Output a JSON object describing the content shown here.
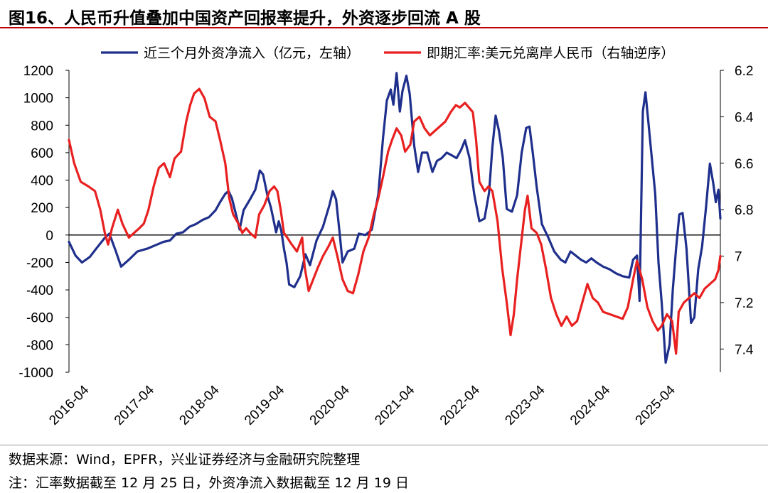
{
  "title": "图16、人民币升值叠加中国资产回报率提升，外资逐步回流 A 股",
  "source": "数据来源：Wind，EPFR，兴业证券经济与金融研究院整理",
  "note": "注：汇率数据截至 12 月 25 日，外资净流入数据截至 12 月 19 日",
  "chart_data": {
    "type": "line",
    "legend_position": "top",
    "x_tick_labels": [
      "2016-04",
      "2017-04",
      "2018-04",
      "2019-04",
      "2020-04",
      "2021-04",
      "2022-04",
      "2023-04",
      "2024-04",
      "2025-04"
    ],
    "x_range": [
      2016.0,
      2026.0
    ],
    "y_left": {
      "ticks": [
        1200,
        1000,
        800,
        600,
        400,
        200,
        0,
        -200,
        -400,
        -600,
        -800,
        -1000
      ],
      "range": [
        -1000,
        1200
      ]
    },
    "y_right": {
      "ticks": [
        6.2,
        6.4,
        6.6,
        6.8,
        7,
        7.2,
        7.4
      ],
      "range": [
        6.2,
        7.5
      ],
      "inverted": true
    },
    "series": [
      {
        "name": "近三个月外资净流入（亿元，左轴）",
        "color": "#1f2f8c",
        "axis": "left",
        "points": [
          [
            2016.0,
            -50
          ],
          [
            2016.1,
            -150
          ],
          [
            2016.2,
            -200
          ],
          [
            2016.32,
            -160
          ],
          [
            2016.45,
            -80
          ],
          [
            2016.55,
            -20
          ],
          [
            2016.62,
            10
          ],
          [
            2016.72,
            -120
          ],
          [
            2016.8,
            -230
          ],
          [
            2016.92,
            -180
          ],
          [
            2017.05,
            -120
          ],
          [
            2017.2,
            -100
          ],
          [
            2017.35,
            -70
          ],
          [
            2017.45,
            -50
          ],
          [
            2017.55,
            -40
          ],
          [
            2017.65,
            10
          ],
          [
            2017.75,
            20
          ],
          [
            2017.85,
            60
          ],
          [
            2017.95,
            80
          ],
          [
            2018.05,
            110
          ],
          [
            2018.15,
            130
          ],
          [
            2018.25,
            180
          ],
          [
            2018.32,
            240
          ],
          [
            2018.4,
            300
          ],
          [
            2018.45,
            320
          ],
          [
            2018.5,
            270
          ],
          [
            2018.58,
            120
          ],
          [
            2018.62,
            40
          ],
          [
            2018.68,
            180
          ],
          [
            2018.78,
            260
          ],
          [
            2018.86,
            330
          ],
          [
            2018.93,
            470
          ],
          [
            2018.98,
            440
          ],
          [
            2019.05,
            280
          ],
          [
            2019.1,
            200
          ],
          [
            2019.18,
            20
          ],
          [
            2019.22,
            100
          ],
          [
            2019.26,
            30
          ],
          [
            2019.3,
            -100
          ],
          [
            2019.34,
            -200
          ],
          [
            2019.38,
            -360
          ],
          [
            2019.46,
            -380
          ],
          [
            2019.55,
            -300
          ],
          [
            2019.63,
            -140
          ],
          [
            2019.7,
            -220
          ],
          [
            2019.8,
            -40
          ],
          [
            2019.9,
            60
          ],
          [
            2020.0,
            220
          ],
          [
            2020.05,
            320
          ],
          [
            2020.1,
            260
          ],
          [
            2020.15,
            40
          ],
          [
            2020.2,
            -200
          ],
          [
            2020.28,
            -120
          ],
          [
            2020.38,
            -100
          ],
          [
            2020.45,
            10
          ],
          [
            2020.55,
            0
          ],
          [
            2020.65,
            40
          ],
          [
            2020.75,
            300
          ],
          [
            2020.82,
            700
          ],
          [
            2020.88,
            980
          ],
          [
            2020.94,
            1060
          ],
          [
            2020.98,
            950
          ],
          [
            2021.03,
            1180
          ],
          [
            2021.08,
            900
          ],
          [
            2021.12,
            1050
          ],
          [
            2021.18,
            1160
          ],
          [
            2021.23,
            1030
          ],
          [
            2021.3,
            650
          ],
          [
            2021.36,
            460
          ],
          [
            2021.42,
            600
          ],
          [
            2021.5,
            600
          ],
          [
            2021.58,
            460
          ],
          [
            2021.65,
            540
          ],
          [
            2021.72,
            560
          ],
          [
            2021.8,
            600
          ],
          [
            2021.88,
            580
          ],
          [
            2021.95,
            560
          ],
          [
            2022.02,
            620
          ],
          [
            2022.08,
            690
          ],
          [
            2022.15,
            560
          ],
          [
            2022.22,
            300
          ],
          [
            2022.3,
            100
          ],
          [
            2022.38,
            120
          ],
          [
            2022.45,
            310
          ],
          [
            2022.5,
            640
          ],
          [
            2022.55,
            870
          ],
          [
            2022.6,
            760
          ],
          [
            2022.66,
            560
          ],
          [
            2022.72,
            190
          ],
          [
            2022.8,
            170
          ],
          [
            2022.88,
            290
          ],
          [
            2022.95,
            600
          ],
          [
            2023.02,
            780
          ],
          [
            2023.07,
            790
          ],
          [
            2023.12,
            600
          ],
          [
            2023.18,
            350
          ],
          [
            2023.26,
            80
          ],
          [
            2023.36,
            -20
          ],
          [
            2023.45,
            -120
          ],
          [
            2023.55,
            -180
          ],
          [
            2023.62,
            -200
          ],
          [
            2023.7,
            -120
          ],
          [
            2023.78,
            -150
          ],
          [
            2023.86,
            -180
          ],
          [
            2023.94,
            -200
          ],
          [
            2024.02,
            -170
          ],
          [
            2024.1,
            -200
          ],
          [
            2024.2,
            -230
          ],
          [
            2024.3,
            -250
          ],
          [
            2024.4,
            -280
          ],
          [
            2024.5,
            -300
          ],
          [
            2024.6,
            -310
          ],
          [
            2024.66,
            -180
          ],
          [
            2024.72,
            -150
          ],
          [
            2024.76,
            -480
          ],
          [
            2024.81,
            900
          ],
          [
            2024.85,
            1040
          ],
          [
            2024.9,
            800
          ],
          [
            2024.95,
            550
          ],
          [
            2025.0,
            300
          ],
          [
            2025.05,
            -200
          ],
          [
            2025.1,
            -500
          ],
          [
            2025.16,
            -930
          ],
          [
            2025.22,
            -800
          ],
          [
            2025.27,
            -400
          ],
          [
            2025.32,
            -100
          ],
          [
            2025.37,
            150
          ],
          [
            2025.42,
            160
          ],
          [
            2025.48,
            -100
          ],
          [
            2025.55,
            -640
          ],
          [
            2025.6,
            -600
          ],
          [
            2025.66,
            -250
          ],
          [
            2025.72,
            -80
          ],
          [
            2025.78,
            200
          ],
          [
            2025.84,
            520
          ],
          [
            2025.89,
            380
          ],
          [
            2025.93,
            240
          ],
          [
            2025.97,
            330
          ],
          [
            2026.0,
            120
          ]
        ]
      },
      {
        "name": "即期汇率:美元兑离岸人民币（右轴逆序）",
        "color": "#e82020",
        "axis": "right",
        "points": [
          [
            2016.0,
            6.5
          ],
          [
            2016.08,
            6.6
          ],
          [
            2016.18,
            6.68
          ],
          [
            2016.3,
            6.7
          ],
          [
            2016.4,
            6.72
          ],
          [
            2016.48,
            6.8
          ],
          [
            2016.55,
            6.9
          ],
          [
            2016.6,
            6.95
          ],
          [
            2016.66,
            6.88
          ],
          [
            2016.75,
            6.8
          ],
          [
            2016.82,
            6.86
          ],
          [
            2016.92,
            6.92
          ],
          [
            2017.0,
            6.9
          ],
          [
            2017.08,
            6.88
          ],
          [
            2017.15,
            6.86
          ],
          [
            2017.22,
            6.8
          ],
          [
            2017.3,
            6.7
          ],
          [
            2017.38,
            6.62
          ],
          [
            2017.46,
            6.6
          ],
          [
            2017.55,
            6.66
          ],
          [
            2017.62,
            6.58
          ],
          [
            2017.72,
            6.55
          ],
          [
            2017.8,
            6.42
          ],
          [
            2017.86,
            6.35
          ],
          [
            2017.92,
            6.3
          ],
          [
            2018.0,
            6.28
          ],
          [
            2018.08,
            6.32
          ],
          [
            2018.16,
            6.4
          ],
          [
            2018.25,
            6.42
          ],
          [
            2018.32,
            6.5
          ],
          [
            2018.4,
            6.6
          ],
          [
            2018.46,
            6.75
          ],
          [
            2018.52,
            6.82
          ],
          [
            2018.6,
            6.86
          ],
          [
            2018.66,
            6.9
          ],
          [
            2018.72,
            6.88
          ],
          [
            2018.78,
            6.9
          ],
          [
            2018.86,
            6.92
          ],
          [
            2018.92,
            6.82
          ],
          [
            2019.0,
            6.78
          ],
          [
            2019.08,
            6.72
          ],
          [
            2019.15,
            6.7
          ],
          [
            2019.2,
            6.72
          ],
          [
            2019.25,
            6.8
          ],
          [
            2019.3,
            6.9
          ],
          [
            2019.35,
            6.92
          ],
          [
            2019.42,
            6.95
          ],
          [
            2019.5,
            6.98
          ],
          [
            2019.58,
            6.92
          ],
          [
            2019.62,
            7.05
          ],
          [
            2019.68,
            7.15
          ],
          [
            2019.75,
            7.1
          ],
          [
            2019.82,
            7.05
          ],
          [
            2019.9,
            7.0
          ],
          [
            2019.98,
            6.96
          ],
          [
            2020.05,
            6.92
          ],
          [
            2020.12,
            7.0
          ],
          [
            2020.2,
            7.1
          ],
          [
            2020.28,
            7.15
          ],
          [
            2020.36,
            7.16
          ],
          [
            2020.44,
            7.08
          ],
          [
            2020.52,
            6.98
          ],
          [
            2020.6,
            6.92
          ],
          [
            2020.68,
            6.82
          ],
          [
            2020.75,
            6.75
          ],
          [
            2020.82,
            6.66
          ],
          [
            2020.9,
            6.55
          ],
          [
            2020.96,
            6.5
          ],
          [
            2021.03,
            6.45
          ],
          [
            2021.1,
            6.48
          ],
          [
            2021.16,
            6.55
          ],
          [
            2021.24,
            6.52
          ],
          [
            2021.3,
            6.42
          ],
          [
            2021.38,
            6.4
          ],
          [
            2021.46,
            6.45
          ],
          [
            2021.54,
            6.48
          ],
          [
            2021.62,
            6.46
          ],
          [
            2021.7,
            6.44
          ],
          [
            2021.78,
            6.42
          ],
          [
            2021.86,
            6.38
          ],
          [
            2021.94,
            6.35
          ],
          [
            2022.0,
            6.36
          ],
          [
            2022.08,
            6.34
          ],
          [
            2022.14,
            6.36
          ],
          [
            2022.2,
            6.38
          ],
          [
            2022.25,
            6.5
          ],
          [
            2022.3,
            6.68
          ],
          [
            2022.38,
            6.72
          ],
          [
            2022.44,
            6.7
          ],
          [
            2022.5,
            6.72
          ],
          [
            2022.58,
            6.85
          ],
          [
            2022.65,
            7.05
          ],
          [
            2022.72,
            7.2
          ],
          [
            2022.78,
            7.34
          ],
          [
            2022.83,
            7.25
          ],
          [
            2022.88,
            7.1
          ],
          [
            2022.94,
            6.95
          ],
          [
            2023.0,
            6.8
          ],
          [
            2023.04,
            6.74
          ],
          [
            2023.1,
            6.88
          ],
          [
            2023.18,
            6.9
          ],
          [
            2023.25,
            6.95
          ],
          [
            2023.32,
            7.05
          ],
          [
            2023.4,
            7.18
          ],
          [
            2023.48,
            7.25
          ],
          [
            2023.56,
            7.3
          ],
          [
            2023.64,
            7.26
          ],
          [
            2023.72,
            7.3
          ],
          [
            2023.8,
            7.28
          ],
          [
            2023.88,
            7.2
          ],
          [
            2023.96,
            7.12
          ],
          [
            2024.04,
            7.18
          ],
          [
            2024.12,
            7.2
          ],
          [
            2024.2,
            7.24
          ],
          [
            2024.3,
            7.25
          ],
          [
            2024.4,
            7.26
          ],
          [
            2024.5,
            7.27
          ],
          [
            2024.58,
            7.22
          ],
          [
            2024.66,
            7.1
          ],
          [
            2024.72,
            7.02
          ],
          [
            2024.8,
            7.1
          ],
          [
            2024.88,
            7.22
          ],
          [
            2024.96,
            7.28
          ],
          [
            2025.04,
            7.32
          ],
          [
            2025.1,
            7.3
          ],
          [
            2025.18,
            7.25
          ],
          [
            2025.26,
            7.28
          ],
          [
            2025.32,
            7.42
          ],
          [
            2025.36,
            7.24
          ],
          [
            2025.44,
            7.2
          ],
          [
            2025.52,
            7.18
          ],
          [
            2025.6,
            7.16
          ],
          [
            2025.68,
            7.18
          ],
          [
            2025.76,
            7.14
          ],
          [
            2025.84,
            7.12
          ],
          [
            2025.92,
            7.1
          ],
          [
            2025.97,
            7.06
          ],
          [
            2026.0,
            7.0
          ]
        ]
      }
    ]
  }
}
